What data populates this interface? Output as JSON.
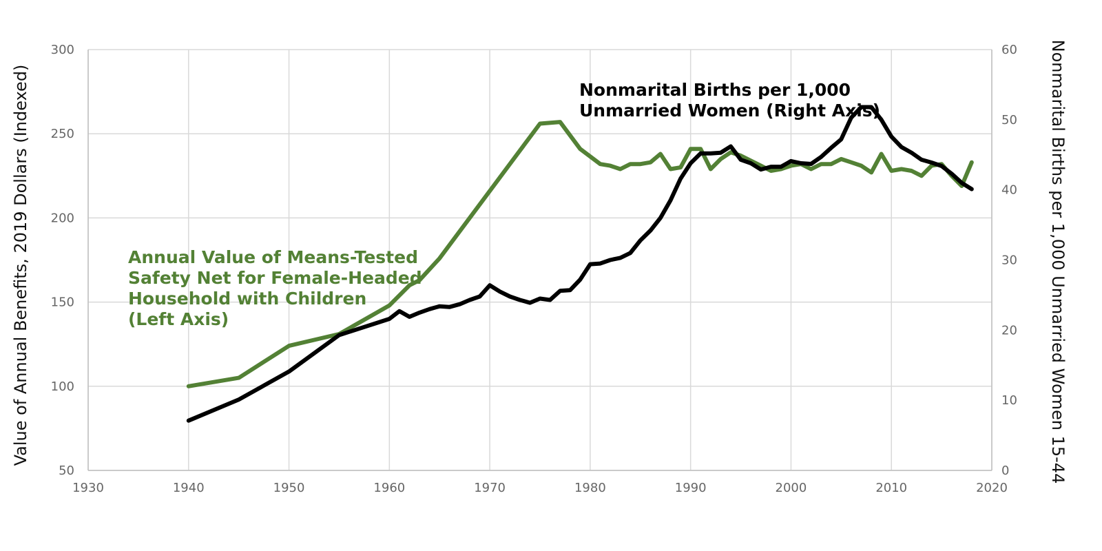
{
  "chart_data": {
    "type": "line",
    "x_axis": {
      "min": 1930,
      "max": 2020,
      "step": 10,
      "ticks": [
        "1930",
        "1940",
        "1950",
        "1960",
        "1970",
        "1980",
        "1990",
        "2000",
        "2010",
        "2020"
      ]
    },
    "y_left": {
      "label": "Value of Annual Benefits, 2019 Dollars (Indexed)",
      "min": 50,
      "max": 300,
      "ticks": [
        "300",
        "250",
        "200",
        "150",
        "100",
        "50"
      ]
    },
    "y_right": {
      "label": "Nonmarital Births per 1,000 Unmarried Women 15-44",
      "min": 0,
      "max": 60,
      "ticks": [
        "60",
        "50",
        "40",
        "30",
        "20",
        "10",
        "0"
      ]
    },
    "grid": true,
    "series": [
      {
        "axis": "left",
        "color": "#538135",
        "annotation_lines": [
          "Annual Value of Means-Tested",
          "Safety Net for Female-Headed",
          "Household with Children",
          "(Left Axis)"
        ],
        "points": [
          [
            1940,
            100
          ],
          [
            1945,
            105
          ],
          [
            1950,
            124
          ],
          [
            1955,
            131
          ],
          [
            1960,
            148
          ],
          [
            1962,
            160
          ],
          [
            1963,
            163
          ],
          [
            1965,
            176
          ],
          [
            1970,
            216
          ],
          [
            1975,
            256
          ],
          [
            1977,
            257
          ],
          [
            1979,
            241
          ],
          [
            1981,
            232
          ],
          [
            1982,
            231
          ],
          [
            1983,
            229
          ],
          [
            1984,
            232
          ],
          [
            1985,
            232
          ],
          [
            1986,
            233
          ],
          [
            1987,
            238
          ],
          [
            1988,
            229
          ],
          [
            1989,
            230
          ],
          [
            1990,
            241
          ],
          [
            1991,
            241
          ],
          [
            1992,
            229
          ],
          [
            1993,
            235
          ],
          [
            1994,
            239
          ],
          [
            1995,
            237
          ],
          [
            1996,
            234
          ],
          [
            1997,
            231
          ],
          [
            1998,
            228
          ],
          [
            1999,
            229
          ],
          [
            2000,
            231
          ],
          [
            2001,
            232
          ],
          [
            2002,
            229
          ],
          [
            2003,
            232
          ],
          [
            2004,
            232
          ],
          [
            2005,
            235
          ],
          [
            2006,
            233
          ],
          [
            2007,
            231
          ],
          [
            2008,
            227
          ],
          [
            2009,
            238
          ],
          [
            2010,
            228
          ],
          [
            2011,
            229
          ],
          [
            2012,
            228
          ],
          [
            2013,
            225
          ],
          [
            2014,
            231
          ],
          [
            2015,
            232
          ],
          [
            2016,
            225
          ],
          [
            2017,
            219
          ],
          [
            2018,
            233
          ]
        ]
      },
      {
        "axis": "right",
        "color": "#000000",
        "annotation_lines": [
          "Nonmarital Births per 1,000",
          "Unmarried Women (Right Axis)"
        ],
        "points": [
          [
            1940,
            7.1
          ],
          [
            1945,
            10.1
          ],
          [
            1950,
            14.1
          ],
          [
            1955,
            19.3
          ],
          [
            1960,
            21.6
          ],
          [
            1961,
            22.7
          ],
          [
            1962,
            21.9
          ],
          [
            1963,
            22.5
          ],
          [
            1964,
            23.0
          ],
          [
            1965,
            23.4
          ],
          [
            1966,
            23.3
          ],
          [
            1967,
            23.7
          ],
          [
            1968,
            24.3
          ],
          [
            1969,
            24.8
          ],
          [
            1970,
            26.4
          ],
          [
            1971,
            25.5
          ],
          [
            1972,
            24.8
          ],
          [
            1973,
            24.3
          ],
          [
            1974,
            23.9
          ],
          [
            1975,
            24.5
          ],
          [
            1976,
            24.3
          ],
          [
            1977,
            25.6
          ],
          [
            1978,
            25.7
          ],
          [
            1979,
            27.2
          ],
          [
            1980,
            29.4
          ],
          [
            1981,
            29.5
          ],
          [
            1982,
            30.0
          ],
          [
            1983,
            30.3
          ],
          [
            1984,
            31.0
          ],
          [
            1985,
            32.8
          ],
          [
            1986,
            34.2
          ],
          [
            1987,
            36.0
          ],
          [
            1988,
            38.5
          ],
          [
            1989,
            41.6
          ],
          [
            1990,
            43.8
          ],
          [
            1991,
            45.2
          ],
          [
            1992,
            45.2
          ],
          [
            1993,
            45.3
          ],
          [
            1994,
            46.2
          ],
          [
            1995,
            44.3
          ],
          [
            1996,
            43.8
          ],
          [
            1997,
            42.9
          ],
          [
            1998,
            43.3
          ],
          [
            1999,
            43.3
          ],
          [
            2000,
            44.1
          ],
          [
            2001,
            43.8
          ],
          [
            2002,
            43.7
          ],
          [
            2003,
            44.7
          ],
          [
            2004,
            46.0
          ],
          [
            2005,
            47.2
          ],
          [
            2006,
            50.3
          ],
          [
            2007,
            51.8
          ],
          [
            2008,
            51.8
          ],
          [
            2009,
            50.0
          ],
          [
            2010,
            47.6
          ],
          [
            2011,
            46.1
          ],
          [
            2012,
            45.3
          ],
          [
            2013,
            44.3
          ],
          [
            2014,
            43.9
          ],
          [
            2015,
            43.4
          ],
          [
            2016,
            42.3
          ],
          [
            2017,
            41.0
          ],
          [
            2018,
            40.1
          ]
        ]
      }
    ]
  }
}
